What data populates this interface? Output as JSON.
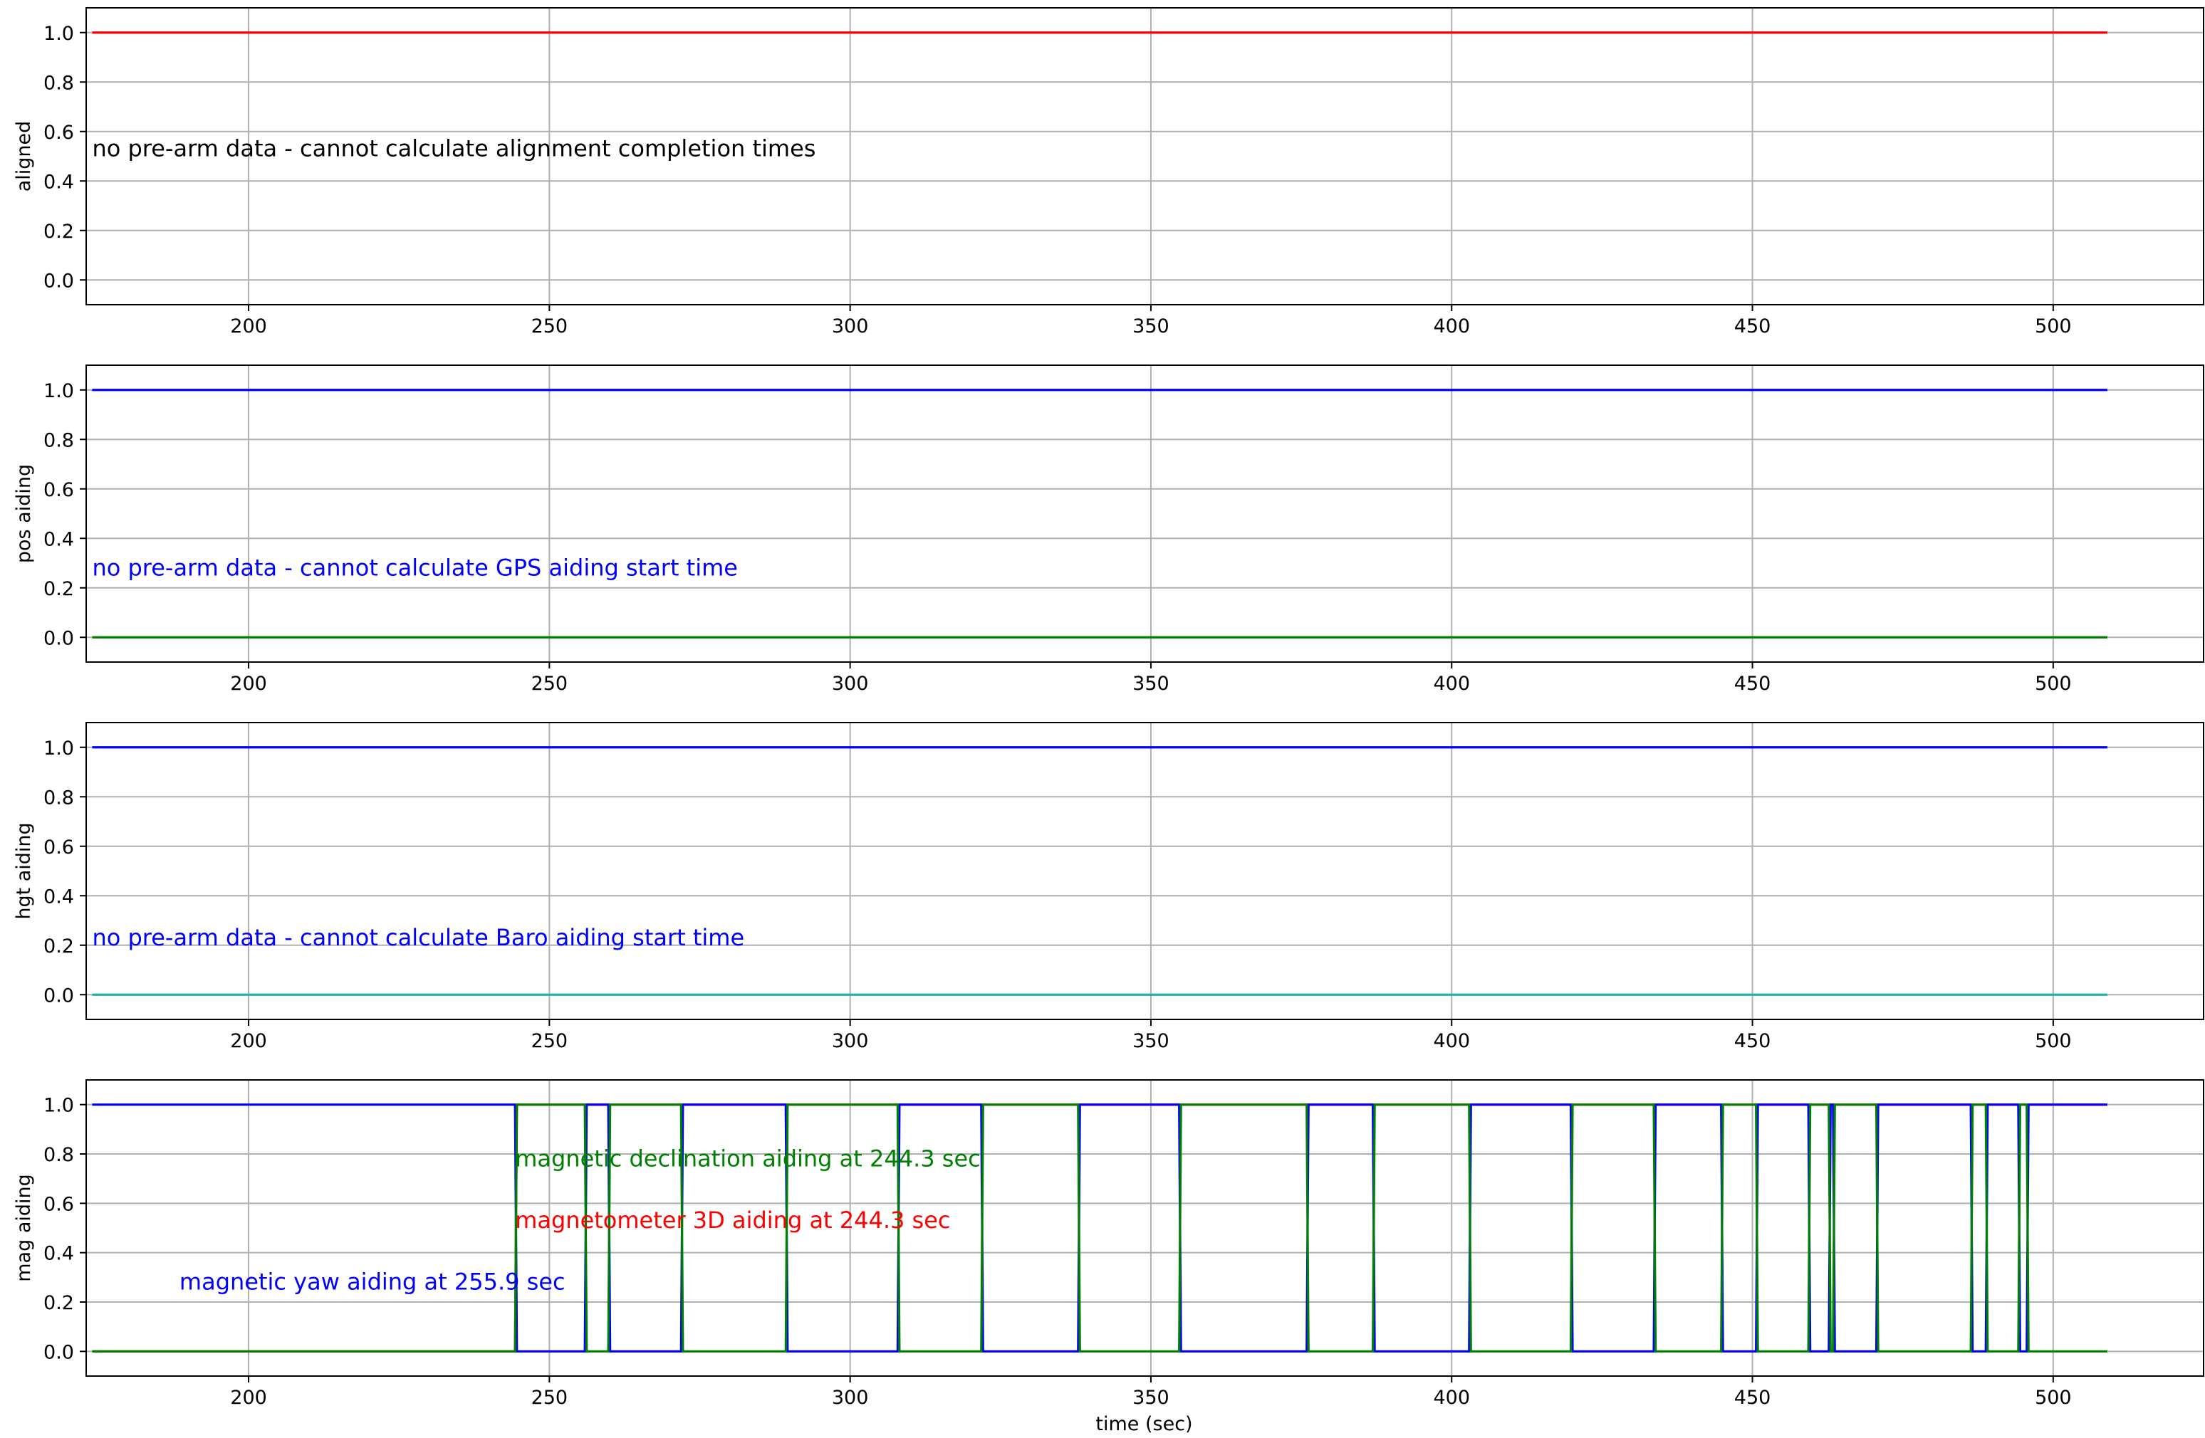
{
  "colors": {
    "red": "#ff0000",
    "blue": "#0000ff",
    "green": "#008000",
    "teal": "#20b2aa",
    "grid": "#b0b0b0"
  },
  "chart_data": [
    {
      "type": "line",
      "ylabel": "aligned",
      "xlabel": "",
      "xlim": [
        173,
        525
      ],
      "ylim": [
        -0.1,
        1.1
      ],
      "xticks": [
        200,
        250,
        300,
        350,
        400,
        450,
        500
      ],
      "yticks": [
        0.0,
        0.2,
        0.4,
        0.6,
        0.8,
        1.0
      ],
      "xtick_labels": [
        "200",
        "250",
        "300",
        "350",
        "400",
        "450",
        "500"
      ],
      "ytick_labels": [
        "0.0",
        "0.2",
        "0.4",
        "0.6",
        "0.8",
        "1.0"
      ],
      "grid": true,
      "series": [
        {
          "color": "#ff0000",
          "x": [
            174,
            509
          ],
          "y": [
            1.0,
            1.0
          ]
        }
      ],
      "annotations": [
        {
          "text": "no pre-arm data - cannot calculate alignment completion times",
          "x": 174,
          "y": 0.5,
          "color": "#000000"
        }
      ]
    },
    {
      "type": "line",
      "ylabel": "pos aiding",
      "xlabel": "",
      "xlim": [
        173,
        525
      ],
      "ylim": [
        -0.1,
        1.1
      ],
      "xticks": [
        200,
        250,
        300,
        350,
        400,
        450,
        500
      ],
      "yticks": [
        0.0,
        0.2,
        0.4,
        0.6,
        0.8,
        1.0
      ],
      "xtick_labels": [
        "200",
        "250",
        "300",
        "350",
        "400",
        "450",
        "500"
      ],
      "ytick_labels": [
        "0.0",
        "0.2",
        "0.4",
        "0.6",
        "0.8",
        "1.0"
      ],
      "grid": true,
      "series": [
        {
          "color": "#0000ff",
          "x": [
            174,
            509
          ],
          "y": [
            1.0,
            1.0
          ]
        },
        {
          "color": "#008000",
          "x": [
            174,
            509
          ],
          "y": [
            0.0,
            0.0
          ]
        }
      ],
      "annotations": [
        {
          "text": "no pre-arm data - cannot calculate GPS aiding start time",
          "x": 174,
          "y": 0.25,
          "color": "#0000ff"
        }
      ]
    },
    {
      "type": "line",
      "ylabel": "hgt aiding",
      "xlabel": "",
      "xlim": [
        173,
        525
      ],
      "ylim": [
        -0.1,
        1.1
      ],
      "xticks": [
        200,
        250,
        300,
        350,
        400,
        450,
        500
      ],
      "yticks": [
        0.0,
        0.2,
        0.4,
        0.6,
        0.8,
        1.0
      ],
      "xtick_labels": [
        "200",
        "250",
        "300",
        "350",
        "400",
        "450",
        "500"
      ],
      "ytick_labels": [
        "0.0",
        "0.2",
        "0.4",
        "0.6",
        "0.8",
        "1.0"
      ],
      "grid": true,
      "series": [
        {
          "color": "#0000ff",
          "x": [
            174,
            509
          ],
          "y": [
            1.0,
            1.0
          ]
        },
        {
          "color": "#20b2aa",
          "x": [
            174,
            509
          ],
          "y": [
            0.0,
            0.0
          ]
        }
      ],
      "annotations": [
        {
          "text": "no pre-arm data - cannot calculate Baro aiding start time",
          "x": 174,
          "y": 0.2,
          "color": "#0000ff"
        }
      ]
    },
    {
      "type": "line",
      "ylabel": "mag aiding",
      "xlabel": "time (sec)",
      "xlim": [
        173,
        525
      ],
      "ylim": [
        -0.1,
        1.1
      ],
      "xticks": [
        200,
        250,
        300,
        350,
        400,
        450,
        500
      ],
      "yticks": [
        0.0,
        0.2,
        0.4,
        0.6,
        0.8,
        1.0
      ],
      "xtick_labels": [
        "200",
        "250",
        "300",
        "350",
        "400",
        "450",
        "500"
      ],
      "ytick_labels": [
        "0.0",
        "0.2",
        "0.4",
        "0.6",
        "0.8",
        "1.0"
      ],
      "grid": true,
      "series": [
        {
          "color": "#ff0000",
          "x": [
            174,
            244.3,
            244.6,
            509
          ],
          "y": [
            0,
            0,
            1,
            1
          ]
        },
        {
          "color": "#0000ff",
          "x": [
            174,
            244.3,
            244.6,
            255.9,
            256.2,
            259.8,
            260.1,
            271.9,
            272.2,
            289.3,
            289.6,
            307.9,
            308.2,
            321.8,
            322.1,
            337.9,
            338.2,
            354.7,
            355.0,
            375.9,
            376.2,
            386.9,
            387.2,
            402.9,
            403.2,
            419.8,
            420.1,
            433.6,
            433.9,
            444.8,
            445.1,
            450.6,
            450.9,
            459.3,
            459.6,
            462.7,
            463.0,
            463.4,
            463.7,
            470.6,
            470.9,
            486.3,
            486.6,
            488.8,
            489.1,
            494.2,
            494.5,
            495.6,
            495.9,
            509
          ],
          "y": [
            1,
            1,
            0,
            0,
            1,
            1,
            0,
            0,
            1,
            1,
            0,
            0,
            1,
            1,
            0,
            0,
            1,
            1,
            0,
            0,
            1,
            1,
            0,
            0,
            1,
            1,
            0,
            0,
            1,
            1,
            0,
            0,
            1,
            1,
            0,
            0,
            1,
            1,
            0,
            0,
            1,
            1,
            0,
            0,
            1,
            1,
            0,
            0,
            1,
            1
          ]
        },
        {
          "color": "#008000",
          "x": [
            174,
            244.3,
            244.6,
            255.9,
            256.2,
            259.8,
            260.1,
            271.9,
            272.2,
            289.3,
            289.6,
            307.9,
            308.2,
            321.8,
            322.1,
            337.9,
            338.2,
            354.7,
            355.0,
            375.9,
            376.2,
            386.9,
            387.2,
            402.9,
            403.2,
            419.8,
            420.1,
            433.6,
            433.9,
            444.8,
            445.1,
            450.6,
            450.9,
            459.3,
            459.6,
            462.7,
            463.0,
            463.4,
            463.7,
            470.6,
            470.9,
            486.3,
            486.6,
            488.8,
            489.1,
            494.2,
            494.5,
            495.6,
            495.9,
            509
          ],
          "y": [
            0,
            0,
            1,
            1,
            0,
            0,
            1,
            1,
            0,
            0,
            1,
            1,
            0,
            0,
            1,
            1,
            0,
            0,
            1,
            1,
            0,
            0,
            1,
            1,
            0,
            0,
            1,
            1,
            0,
            0,
            1,
            1,
            0,
            0,
            1,
            1,
            0,
            0,
            1,
            1,
            0,
            0,
            1,
            1,
            0,
            0,
            1,
            1,
            0,
            0
          ]
        }
      ],
      "annotations": [
        {
          "text": "magnetic declination aiding at 244.3 sec",
          "x": 244.3,
          "y": 0.75,
          "color": "#008000"
        },
        {
          "text": "magnetometer 3D aiding at 244.3 sec",
          "x": 244.3,
          "y": 0.5,
          "color": "#ff0000"
        },
        {
          "text": "magnetic yaw aiding at 255.9 sec",
          "x": 188.5,
          "y": 0.25,
          "color": "#0000ff"
        }
      ]
    }
  ]
}
